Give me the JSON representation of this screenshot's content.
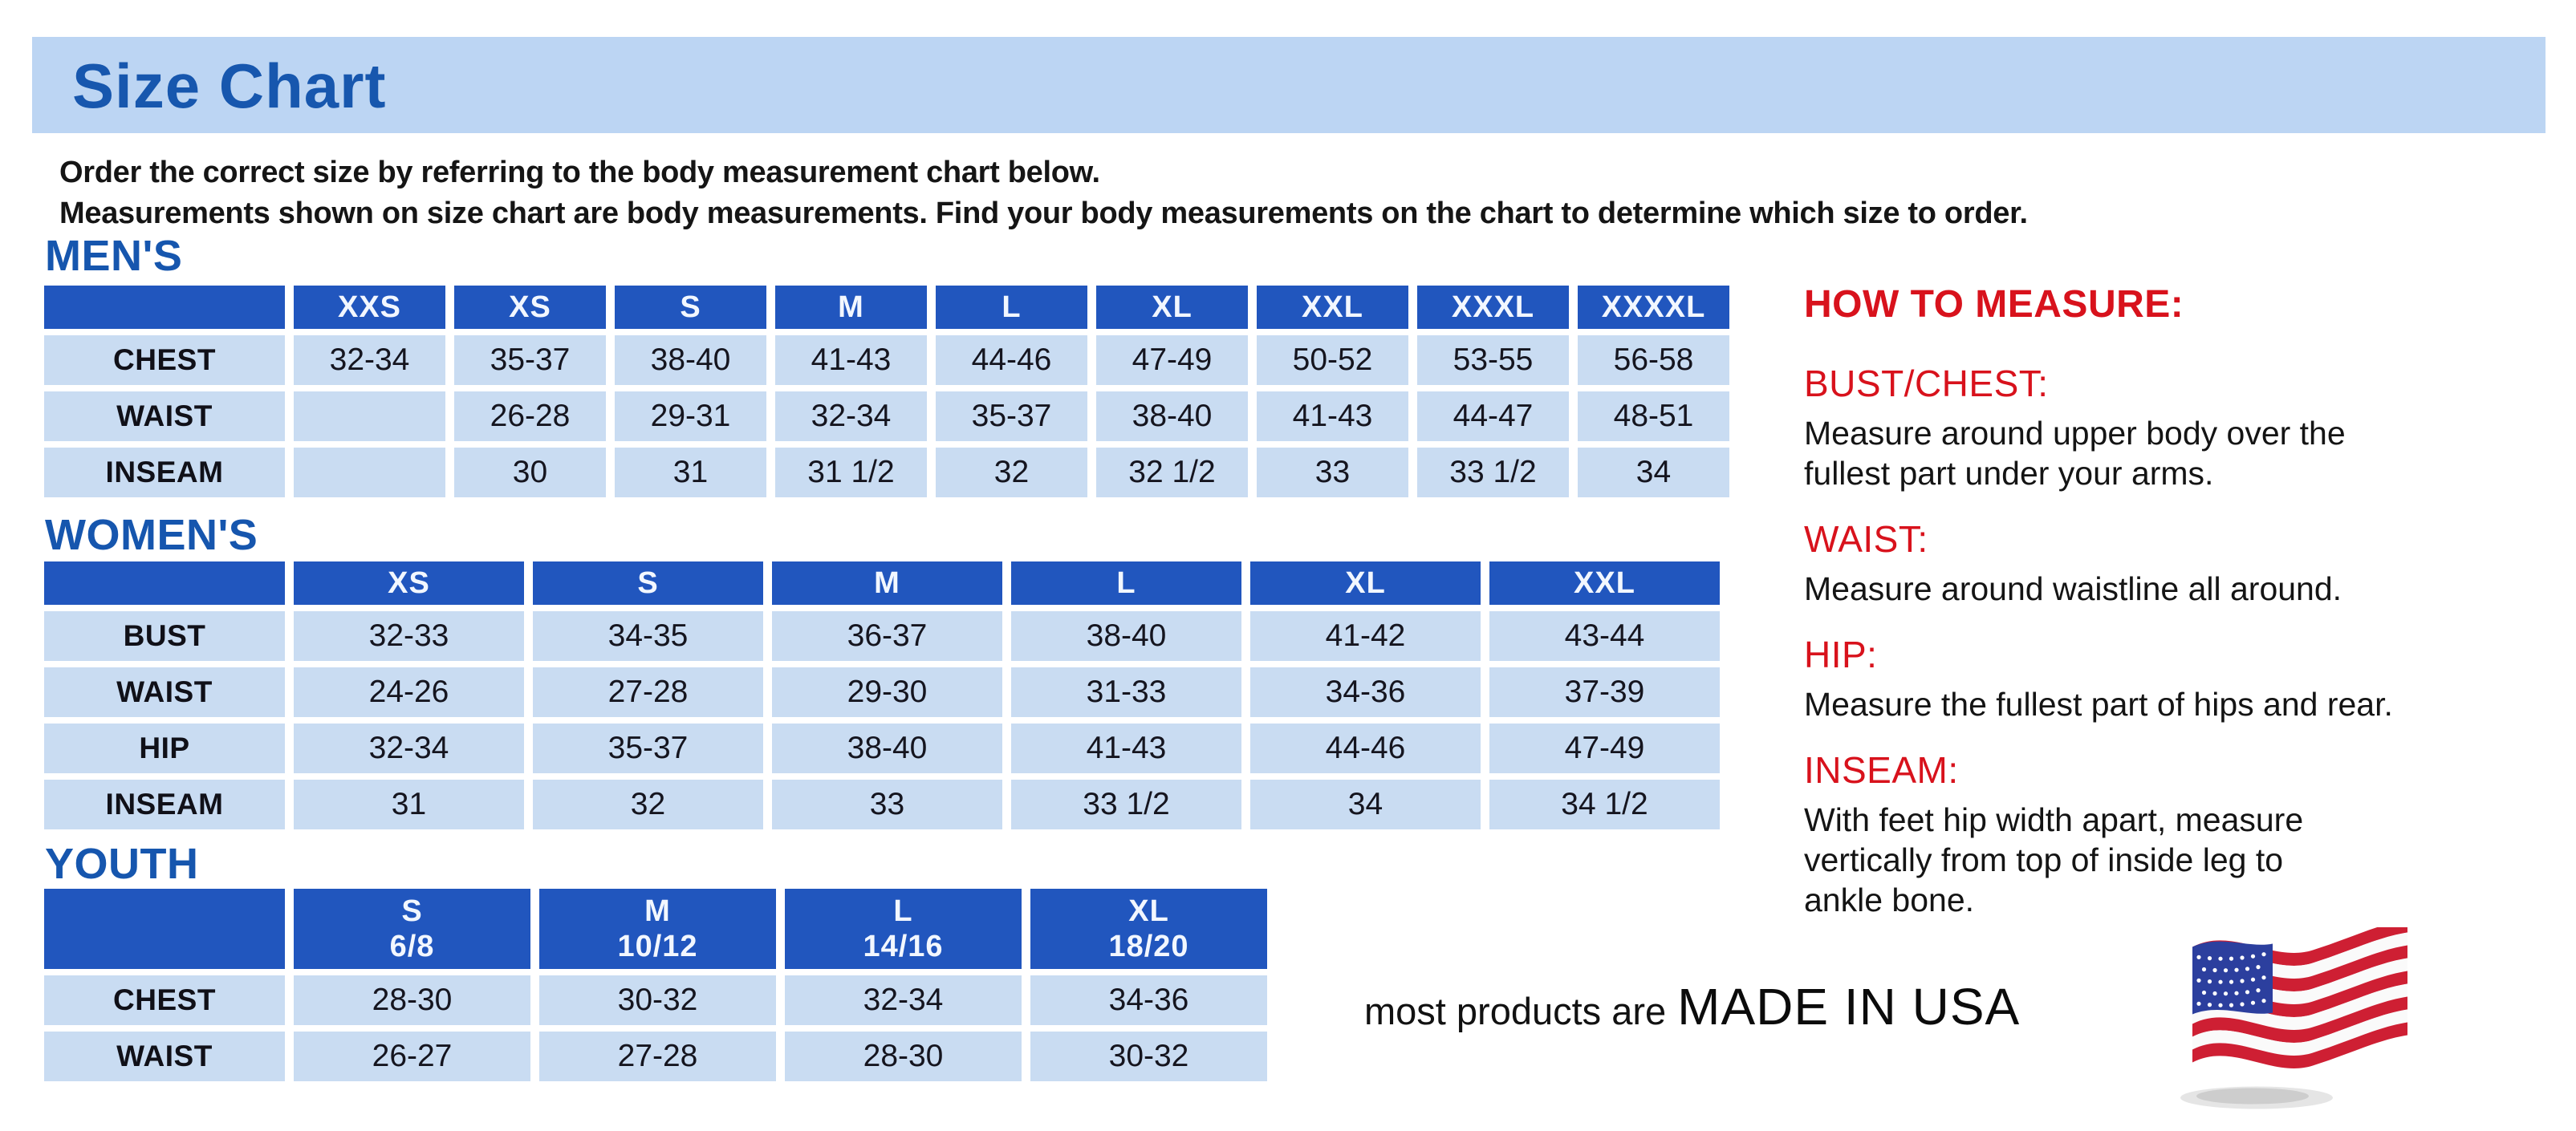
{
  "page": {
    "title": "Size Chart",
    "intro_lines": [
      "Order the correct size by referring to the body measurement chart below.",
      "Measurements shown on size chart are body measurements.  Find your body measurements on the chart to determine which size to order."
    ]
  },
  "tables": {
    "mens": {
      "heading": "MEN'S",
      "columns": [
        "XXS",
        "XS",
        "S",
        "M",
        "L",
        "XL",
        "XXL",
        "XXXL",
        "XXXXL"
      ],
      "rows": [
        {
          "label": "CHEST",
          "values": [
            "32-34",
            "35-37",
            "38-40",
            "41-43",
            "44-46",
            "47-49",
            "50-52",
            "53-55",
            "56-58"
          ]
        },
        {
          "label": "WAIST",
          "values": [
            "",
            "26-28",
            "29-31",
            "32-34",
            "35-37",
            "38-40",
            "41-43",
            "44-47",
            "48-51"
          ]
        },
        {
          "label": "INSEAM",
          "values": [
            "",
            "30",
            "31",
            "31 1/2",
            "32",
            "32 1/2",
            "33",
            "33 1/2",
            "34"
          ]
        }
      ]
    },
    "womens": {
      "heading": "WOMEN'S",
      "columns": [
        "XS",
        "S",
        "M",
        "L",
        "XL",
        "XXL"
      ],
      "rows": [
        {
          "label": "BUST",
          "values": [
            "32-33",
            "34-35",
            "36-37",
            "38-40",
            "41-42",
            "43-44"
          ]
        },
        {
          "label": "WAIST",
          "values": [
            "24-26",
            "27-28",
            "29-30",
            "31-33",
            "34-36",
            "37-39"
          ]
        },
        {
          "label": "HIP",
          "values": [
            "32-34",
            "35-37",
            "38-40",
            "41-43",
            "44-46",
            "47-49"
          ]
        },
        {
          "label": "INSEAM",
          "values": [
            "31",
            "32",
            "33",
            "33 1/2",
            "34",
            "34 1/2"
          ]
        }
      ]
    },
    "youth": {
      "heading": "YOUTH",
      "columns": [
        {
          "label": "S",
          "sub": "6/8"
        },
        {
          "label": "M",
          "sub": "10/12"
        },
        {
          "label": "L",
          "sub": "14/16"
        },
        {
          "label": "XL",
          "sub": "18/20"
        }
      ],
      "rows": [
        {
          "label": "CHEST",
          "values": [
            "28-30",
            "30-32",
            "32-34",
            "34-36"
          ]
        },
        {
          "label": "WAIST",
          "values": [
            "26-27",
            "27-28",
            "28-30",
            "30-32"
          ]
        }
      ]
    }
  },
  "how_to_measure": {
    "heading": "HOW TO MEASURE:",
    "items": [
      {
        "term": "BUST/CHEST:",
        "lines": [
          "Measure around upper body over the",
          "fullest part under your arms."
        ]
      },
      {
        "term": "WAIST:",
        "lines": [
          "Measure around waistline all around."
        ]
      },
      {
        "term": "HIP:",
        "lines": [
          "Measure the fullest part of hips and rear."
        ]
      },
      {
        "term": "INSEAM:",
        "lines": [
          "With feet hip width apart, measure",
          "vertically from top of inside leg to",
          "ankle bone."
        ]
      }
    ]
  },
  "footer": {
    "prefix": "most products are",
    "emphasis": "MADE IN USA",
    "icon": "usa-flag-icon"
  },
  "colors": {
    "title_bar_bg": "#BCD5F3",
    "heading_blue": "#1656AE",
    "table_header_bg": "#2156BE",
    "table_cell_bg": "#C9DCF2",
    "accent_red": "#D8121C",
    "flag_red": "#CE1F33",
    "flag_blue": "#2C3F9E",
    "flag_white": "#FAFAFA"
  }
}
